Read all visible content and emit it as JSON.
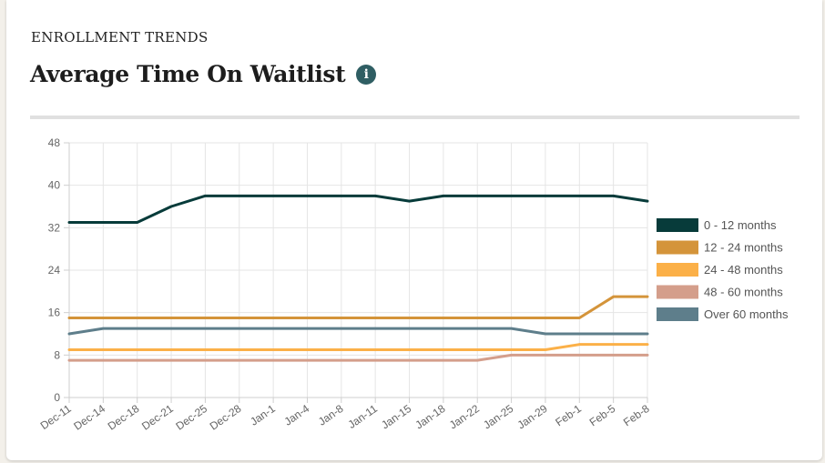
{
  "header": {
    "kicker": "ENROLLMENT TRENDS",
    "title": "Average Time On Waitlist",
    "info_glyph": "i"
  },
  "chart_data": {
    "type": "line",
    "x": [
      "Dec-11",
      "Dec-14",
      "Dec-18",
      "Dec-21",
      "Dec-25",
      "Dec-28",
      "Jan-1",
      "Jan-4",
      "Jan-8",
      "Jan-11",
      "Jan-15",
      "Jan-18",
      "Jan-22",
      "Jan-25",
      "Jan-29",
      "Feb-1",
      "Feb-5",
      "Feb-8"
    ],
    "ylim": [
      0,
      48
    ],
    "yticks": [
      0,
      8,
      16,
      24,
      32,
      40,
      48
    ],
    "grid": true,
    "legend_position": "right",
    "series": [
      {
        "name": "0 - 12 months",
        "color": "#073b3a",
        "values": [
          33,
          33,
          33,
          36,
          38,
          38,
          38,
          38,
          38,
          38,
          37,
          38,
          38,
          38,
          38,
          38,
          38,
          37
        ]
      },
      {
        "name": "12 - 24 months",
        "color": "#d4943a",
        "values": [
          15,
          15,
          15,
          15,
          15,
          15,
          15,
          15,
          15,
          15,
          15,
          15,
          15,
          15,
          15,
          15,
          19,
          19
        ]
      },
      {
        "name": "24 - 48 months",
        "color": "#fbb048",
        "values": [
          9,
          9,
          9,
          9,
          9,
          9,
          9,
          9,
          9,
          9,
          9,
          9,
          9,
          9,
          9,
          10,
          10,
          10
        ]
      },
      {
        "name": "48 - 60 months",
        "color": "#d49e8b",
        "values": [
          7,
          7,
          7,
          7,
          7,
          7,
          7,
          7,
          7,
          7,
          7,
          7,
          7,
          8,
          8,
          8,
          8,
          8
        ]
      },
      {
        "name": "Over 60 months",
        "color": "#5e7e8b",
        "values": [
          12,
          13,
          13,
          13,
          13,
          13,
          13,
          13,
          13,
          13,
          13,
          13,
          13,
          13,
          12,
          12,
          12,
          12
        ]
      }
    ]
  }
}
